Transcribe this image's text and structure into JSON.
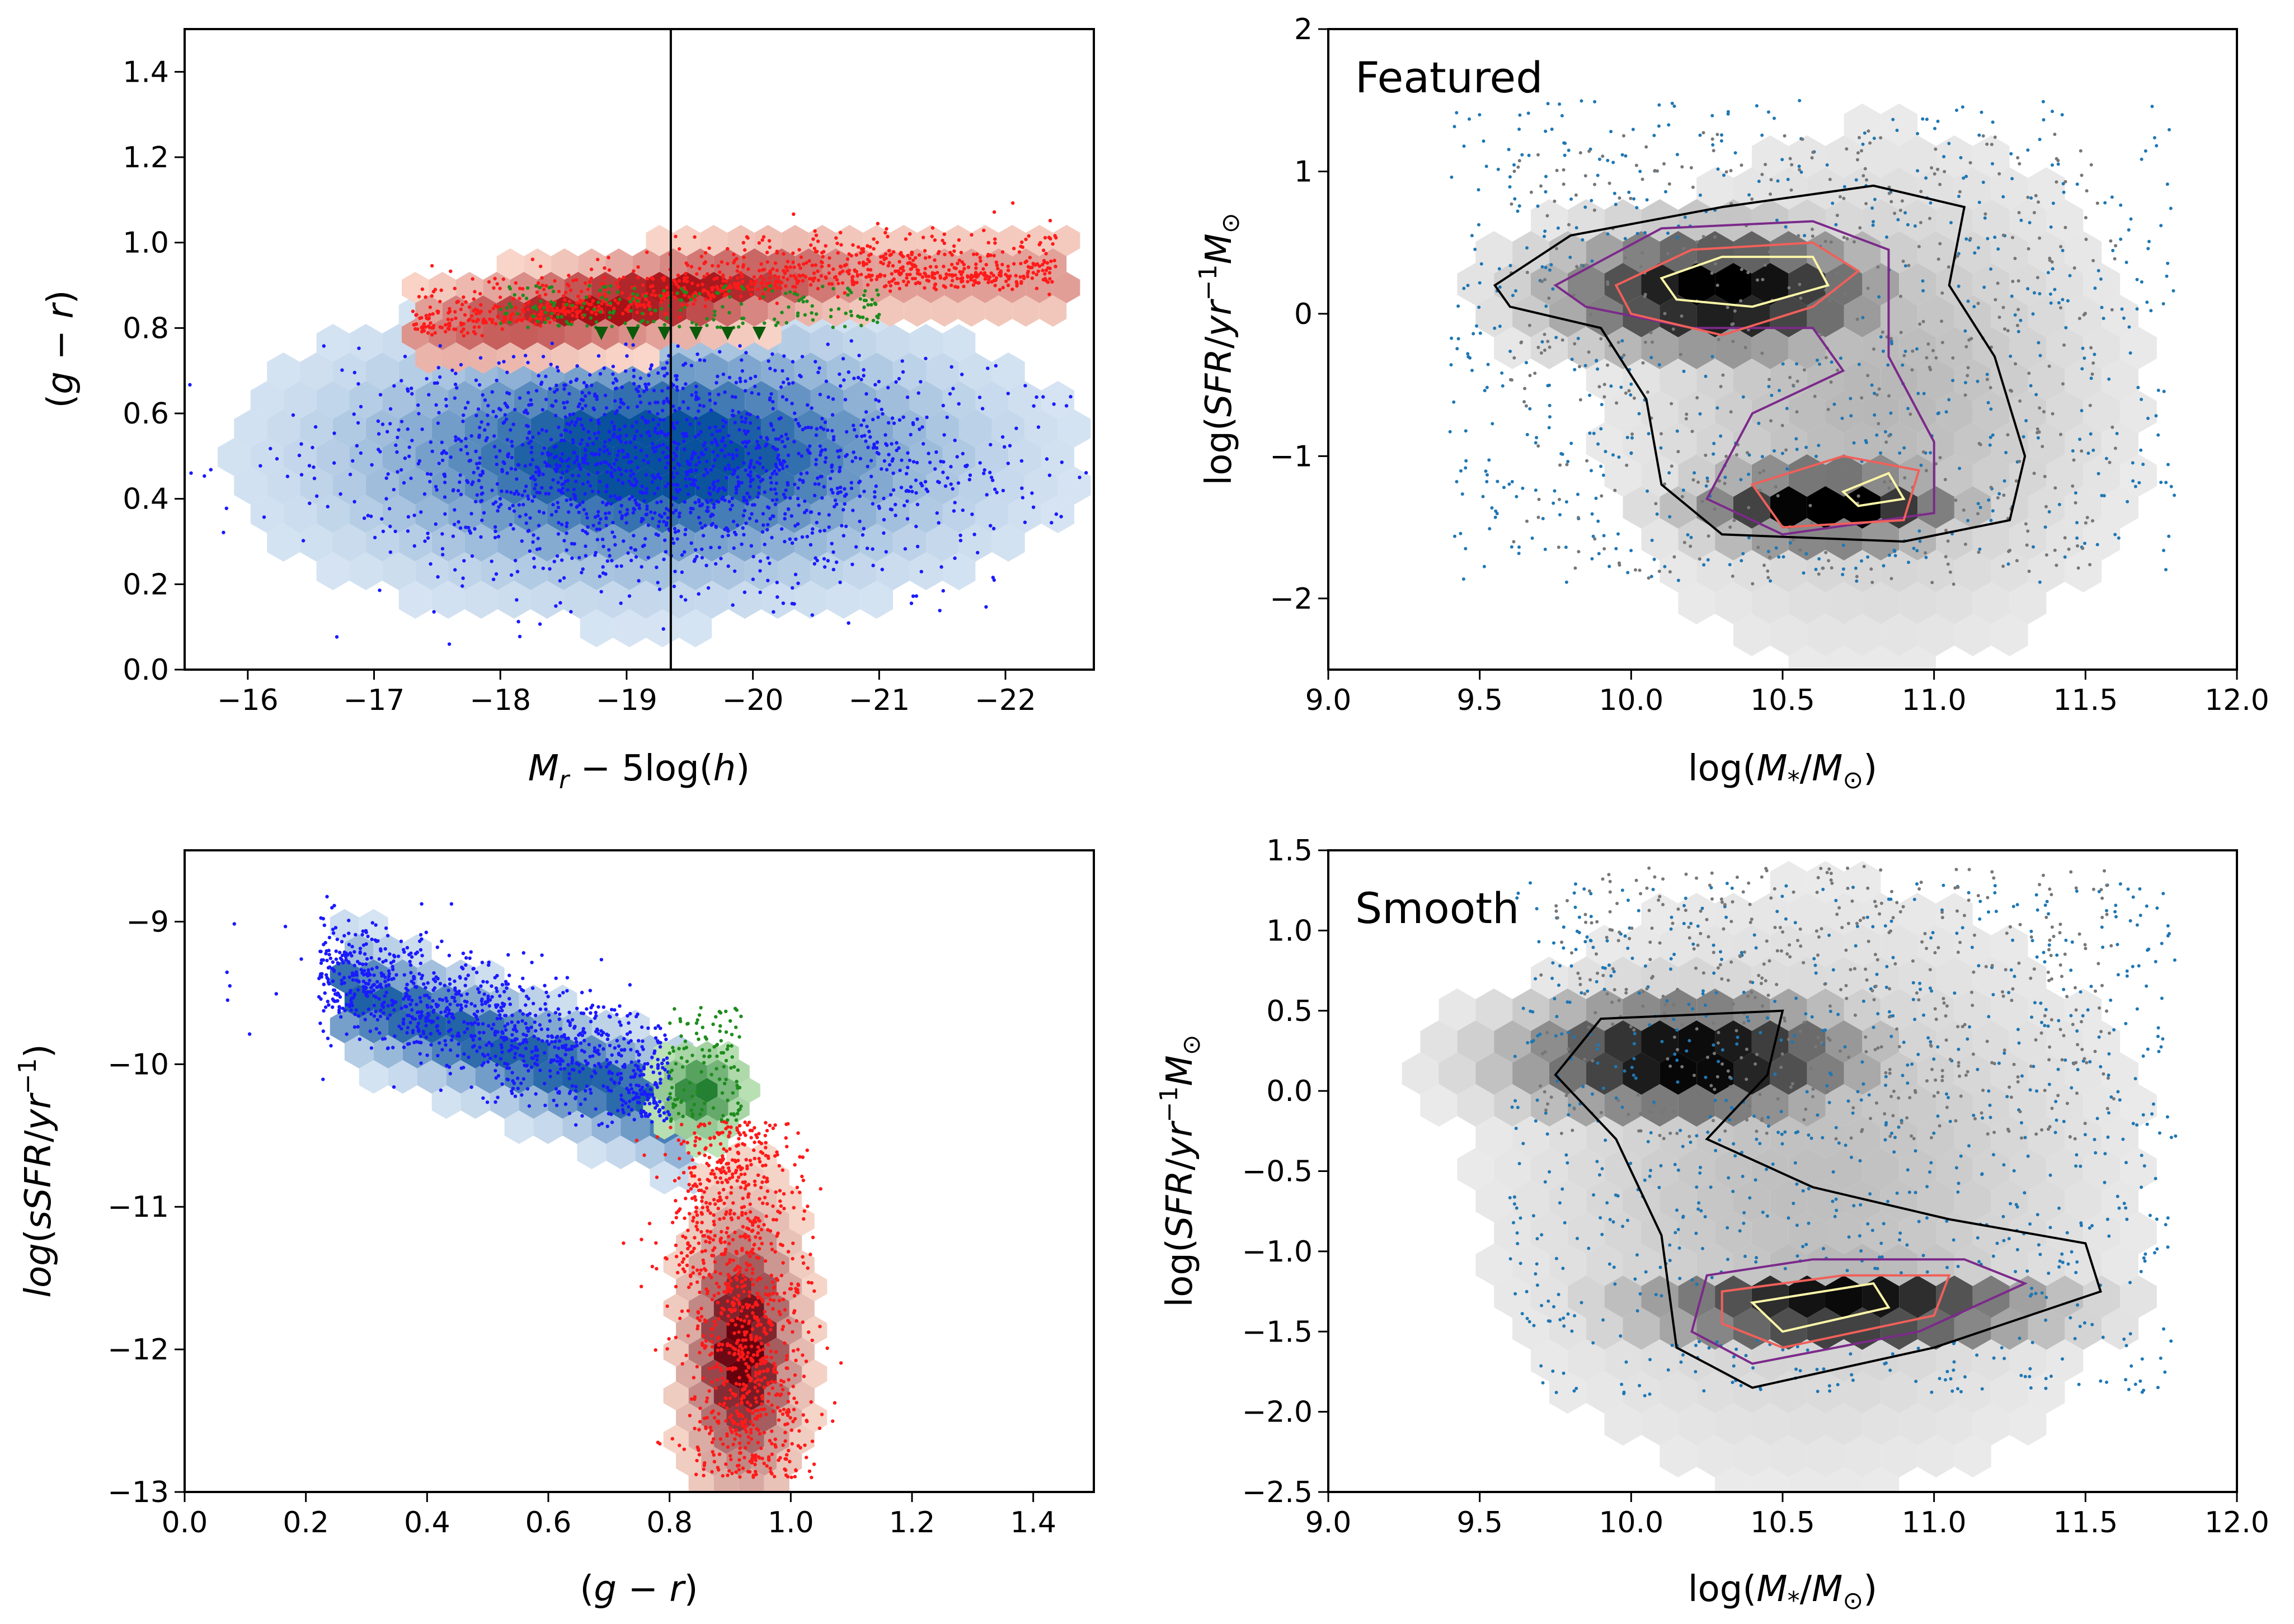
{
  "chart_data": [
    {
      "id": "p1",
      "type": "scatter",
      "xlabel": "M_r − 5log(h)",
      "ylabel": "(g − r)",
      "xlim": [
        -15.5,
        -22.7
      ],
      "ylim": [
        0.0,
        1.5
      ],
      "xticks": [
        -16,
        -17,
        -18,
        -19,
        -20,
        -21,
        -22
      ],
      "xtick_labels": [
        "−16",
        "−17",
        "−18",
        "−19",
        "−20",
        "−21",
        "−22"
      ],
      "yticks": [
        0.0,
        0.2,
        0.4,
        0.6,
        0.8,
        1.0,
        1.2,
        1.4
      ],
      "ytick_labels": [
        "0.0",
        "0.2",
        "0.4",
        "0.6",
        "0.8",
        "1.0",
        "1.2",
        "1.4"
      ],
      "vline_x": -19.35,
      "series": [
        {
          "name": "blue cloud",
          "color": "#1a1aff",
          "cmap": "#2166ac",
          "x_center": -19.3,
          "y_center": 0.48,
          "x_spread": 1.2,
          "y_spread": 0.13
        },
        {
          "name": "red sequence",
          "color": "#ff1a1a",
          "cmap": "#cb181d",
          "x_start": -17.3,
          "x_end": -22.3,
          "y_start": 0.79,
          "y_end": 0.93
        },
        {
          "name": "green valley",
          "color": "#1e8c1e",
          "x_center": -19.2,
          "y_center": 0.83
        }
      ]
    },
    {
      "id": "p2",
      "type": "scatter",
      "title": "Featured",
      "xlabel": "log(M*/M⊙)",
      "ylabel": "log(SFR/yr⁻¹M⊙)",
      "xlim": [
        9.0,
        12.0
      ],
      "ylim": [
        -2.5,
        2.0
      ],
      "xticks": [
        9.0,
        9.5,
        10.0,
        10.5,
        11.0,
        11.5,
        12.0
      ],
      "xtick_labels": [
        "9.0",
        "9.5",
        "10.0",
        "10.5",
        "11.0",
        "11.5",
        "12.0"
      ],
      "yticks": [
        -2,
        -1,
        0,
        1,
        2
      ],
      "ytick_labels": [
        "−2",
        "−1",
        "0",
        "1",
        "2"
      ],
      "series": [
        {
          "name": "star-forming peak",
          "x_center": 10.3,
          "y_center": 0.2
        },
        {
          "name": "quiescent peak",
          "x_center": 10.65,
          "y_center": -1.35
        }
      ]
    },
    {
      "id": "p3",
      "type": "scatter",
      "xlabel": "(g − r)",
      "ylabel": "log(sSFR/yr⁻¹)",
      "xlim": [
        0.0,
        1.5
      ],
      "ylim": [
        -13.0,
        -8.5
      ],
      "xticks": [
        0.0,
        0.2,
        0.4,
        0.6,
        0.8,
        1.0,
        1.2,
        1.4
      ],
      "xtick_labels": [
        "0.0",
        "0.2",
        "0.4",
        "0.6",
        "0.8",
        "1.0",
        "1.2",
        "1.4"
      ],
      "yticks": [
        -13,
        -12,
        -11,
        -10,
        -9
      ],
      "ytick_labels": [
        "−13",
        "−12",
        "−11",
        "−10",
        "−9"
      ],
      "series": [
        {
          "name": "blue cloud",
          "color": "#1a1aff",
          "x_range": [
            0.2,
            0.8
          ],
          "y_range": [
            -9.4,
            -10.4
          ]
        },
        {
          "name": "red sequence",
          "color": "#ff1a1a",
          "x_center": 0.91,
          "y_range": [
            -10.4,
            -12.8
          ]
        },
        {
          "name": "green valley",
          "color": "#1e8c1e",
          "x_center": 0.84,
          "y_center": -10.2
        }
      ]
    },
    {
      "id": "p4",
      "type": "scatter",
      "title": "Smooth",
      "xlabel": "log(M*/M⊙)",
      "ylabel": "log(SFR/yr⁻¹M⊙)",
      "xlim": [
        9.0,
        12.0
      ],
      "ylim": [
        -2.5,
        1.5
      ],
      "xticks": [
        9.0,
        9.5,
        10.0,
        10.5,
        11.0,
        11.5,
        12.0
      ],
      "xtick_labels": [
        "9.0",
        "9.5",
        "10.0",
        "10.5",
        "11.0",
        "11.5",
        "12.0"
      ],
      "yticks": [
        -2.5,
        -2.0,
        -1.5,
        -1.0,
        -0.5,
        0.0,
        0.5,
        1.0,
        1.5
      ],
      "ytick_labels": [
        "−2.5",
        "−2.0",
        "−1.5",
        "−1.0",
        "−0.5",
        "0.0",
        "0.5",
        "1.0",
        "1.5"
      ],
      "series": [
        {
          "name": "star-forming peak",
          "x_center": 10.25,
          "y_center": 0.25
        },
        {
          "name": "quiescent peak",
          "x_center": 10.65,
          "y_center": -1.35
        }
      ]
    }
  ]
}
